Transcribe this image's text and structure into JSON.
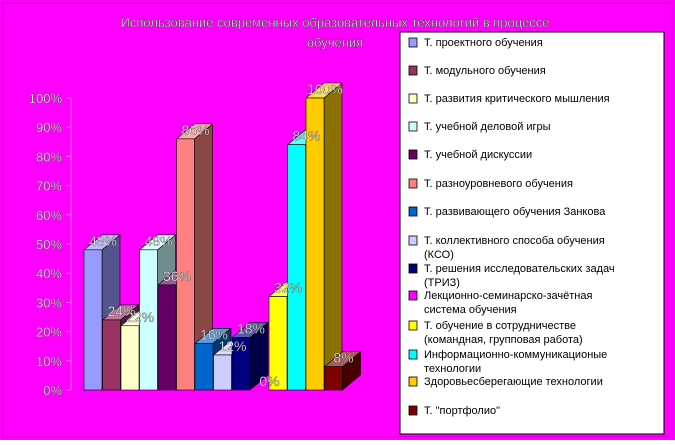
{
  "chart_data": {
    "type": "bar",
    "title": "Использование современных образовательных технологий в процессе обучения",
    "title_lines": [
      "Использование современных образовательных технологий в процессе",
      "обучения"
    ],
    "ylim": [
      0,
      100
    ],
    "y_ticks": [
      "0%",
      "10%",
      "20%",
      "30%",
      "40%",
      "50%",
      "60%",
      "70%",
      "80%",
      "90%",
      "100%"
    ],
    "grid": false,
    "legend_position": "right",
    "series": [
      {
        "name": "Т. проектного обучения",
        "value": 48,
        "label": "48%",
        "color": "#9999ff"
      },
      {
        "name": "Т. модульного обучения",
        "value": 24,
        "label": "24%",
        "color": "#993366"
      },
      {
        "name": "Т. развития критического мышления",
        "value": 22,
        "label": "22%",
        "color": "#ffffcc"
      },
      {
        "name": "Т. учебной деловой игры",
        "value": 48,
        "label": "48%",
        "color": "#ccffff"
      },
      {
        "name": "Т. учебной дискуссии",
        "value": 36,
        "label": "36%",
        "color": "#660066"
      },
      {
        "name": "Т. разноуровневого обучения",
        "value": 86,
        "label": "86%",
        "color": "#ff8080"
      },
      {
        "name": "Т. развивающего обучения Занкова",
        "value": 16,
        "label": "16%",
        "color": "#0066cc"
      },
      {
        "name": "Т. коллективного способа обучения (КСО)",
        "value": 12,
        "label": "12%",
        "color": "#ccccff"
      },
      {
        "name": "Т. решения исследовательских задач (ТРИЗ)",
        "value": 18,
        "label": "18%",
        "color": "#000080"
      },
      {
        "name": "Лекционно-семинарско-зачётная система обучения",
        "value": 0,
        "label": "0%",
        "color": "#ff00ff"
      },
      {
        "name": "Т. обучение в сотрудничестве (командная, групповая работа)",
        "value": 32,
        "label": "32%",
        "color": "#ffff00"
      },
      {
        "name": "Информационно-коммуникационые технологии",
        "value": 84,
        "label": "84%",
        "color": "#00ffff"
      },
      {
        "name": "Здоровьесберегающие технологии",
        "value": 100,
        "label": "100%",
        "color": "#ffcc00"
      },
      {
        "name": "Т. \"портфолио\"",
        "value": 8,
        "label": "8%",
        "color": "#800000"
      }
    ],
    "legend_lines": [
      [
        "Т. проектного обучения"
      ],
      [
        "Т. модульного обучения"
      ],
      [
        "Т. развития критического мышления"
      ],
      [
        "Т. учебной деловой игры"
      ],
      [
        "Т. учебной дискуссии"
      ],
      [
        "Т. разноуровневого обучения"
      ],
      [
        "Т. развивающего обучения Занкова"
      ],
      [
        "Т. коллективного способа обучения",
        "(КСО)"
      ],
      [
        "Т. решения исследовательских задач",
        "(ТРИЗ)"
      ],
      [
        "Лекционно-семинарско-зачётная",
        "система обучения"
      ],
      [
        "Т. обучение в сотрудничестве",
        "(командная, групповая работа)"
      ],
      [
        "Информационно-коммуникационые",
        "технологии"
      ],
      [
        "Здоровьесберегающие технологии"
      ],
      [
        "Т. \"портфолио\""
      ]
    ]
  },
  "colors": {
    "background": "#ff00ff",
    "legend_background": "#ffffff",
    "label_color": "#ffffff",
    "axis_color": "#ff00ff"
  }
}
